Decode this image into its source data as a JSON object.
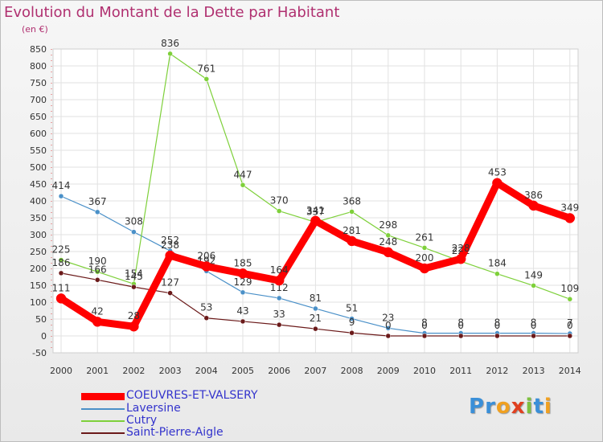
{
  "chart_data": {
    "type": "line",
    "title": "Evolution du Montant de la Dette par Habitant",
    "unit_label": "(en €)",
    "x": [
      "2000",
      "2001",
      "2002",
      "2003",
      "2004",
      "2005",
      "2006",
      "2007",
      "2008",
      "2009",
      "2010",
      "2011",
      "2012",
      "2013",
      "2014"
    ],
    "ylim": [
      -50,
      850
    ],
    "yticks": [
      -50,
      0,
      50,
      100,
      150,
      200,
      250,
      300,
      350,
      400,
      450,
      500,
      550,
      600,
      650,
      700,
      750,
      800,
      850
    ],
    "grid": true,
    "legend_position": "bottom-left",
    "series": [
      {
        "name": "COEUVRES-ET-VALSERY",
        "color": "#ff0000",
        "values": [
          111,
          42,
          28,
          238,
          206,
          185,
          164,
          341,
          281,
          248,
          200,
          228,
          453,
          386,
          349
        ]
      },
      {
        "name": "Laversine",
        "color": "#4a90c8",
        "values": [
          414,
          367,
          308,
          252,
          192,
          129,
          112,
          81,
          51,
          23,
          8,
          8,
          8,
          8,
          7
        ]
      },
      {
        "name": "Cutry",
        "color": "#7ed03a",
        "values": [
          225,
          190,
          154,
          836,
          761,
          447,
          370,
          337,
          368,
          298,
          261,
          221,
          184,
          149,
          109
        ]
      },
      {
        "name": "Saint-Pierre-Aigle",
        "color": "#6b1a1a",
        "values": [
          186,
          166,
          145,
          127,
          53,
          43,
          33,
          21,
          9,
          0,
          0,
          0,
          0,
          0,
          0
        ]
      }
    ]
  },
  "logo": {
    "letters": [
      "P",
      "r",
      "o",
      "x",
      "i",
      "t",
      "i"
    ],
    "colors": [
      "#3a8fd8",
      "#3a8fd8",
      "#f0a020",
      "#e04020",
      "#7ec040",
      "#3a8fd8",
      "#f0a020"
    ]
  }
}
